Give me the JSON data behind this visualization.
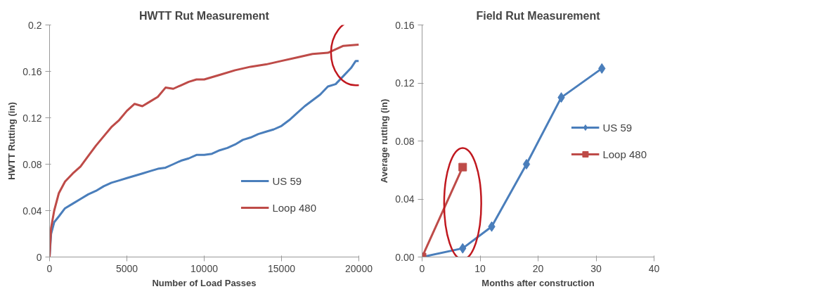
{
  "chart_data": [
    {
      "type": "line",
      "title": "HWTT Rut Measurement",
      "xlabel": "Number of Load Passes",
      "ylabel": "HWTT Rutting (in)",
      "xlim": [
        0,
        20000
      ],
      "ylim": [
        0,
        0.2
      ],
      "xticks": [
        0,
        5000,
        10000,
        15000,
        20000
      ],
      "yticks": [
        0,
        0.04,
        0.08,
        0.12,
        0.16,
        0.2
      ],
      "grid": false,
      "legend": "bottom right",
      "marker": "none",
      "line_style": "solid",
      "series": [
        {
          "name": "US 59",
          "color": "#4a7ebb",
          "x": [
            0,
            100,
            300,
            600,
            1000,
            1500,
            2000,
            2500,
            3000,
            3500,
            4000,
            4500,
            5000,
            5500,
            6000,
            6500,
            7000,
            7500,
            8000,
            8500,
            9000,
            9500,
            10000,
            10500,
            11000,
            11500,
            12000,
            12500,
            13000,
            13500,
            14000,
            14500,
            15000,
            15500,
            16000,
            16500,
            17000,
            17500,
            18000,
            18500,
            19000,
            19500,
            19800,
            20000
          ],
          "values": [
            0,
            0.02,
            0.03,
            0.035,
            0.042,
            0.046,
            0.05,
            0.054,
            0.057,
            0.061,
            0.064,
            0.066,
            0.068,
            0.07,
            0.072,
            0.074,
            0.076,
            0.077,
            0.08,
            0.083,
            0.085,
            0.088,
            0.088,
            0.089,
            0.092,
            0.094,
            0.097,
            0.101,
            0.103,
            0.106,
            0.108,
            0.11,
            0.113,
            0.118,
            0.124,
            0.13,
            0.135,
            0.14,
            0.147,
            0.149,
            0.156,
            0.163,
            0.169,
            0.169
          ]
        },
        {
          "name": "Loop 480",
          "color": "#be4b48",
          "x": [
            0,
            100,
            300,
            600,
            1000,
            1500,
            2000,
            2500,
            3000,
            3500,
            4000,
            4500,
            5000,
            5500,
            6000,
            6500,
            7000,
            7500,
            8000,
            8500,
            9000,
            9500,
            10000,
            11000,
            12000,
            13000,
            14000,
            15000,
            16000,
            17000,
            18000,
            19000,
            20000
          ],
          "values": [
            0,
            0.025,
            0.04,
            0.055,
            0.065,
            0.072,
            0.078,
            0.087,
            0.096,
            0.104,
            0.112,
            0.118,
            0.126,
            0.132,
            0.13,
            0.134,
            0.138,
            0.146,
            0.145,
            0.148,
            0.151,
            0.153,
            0.153,
            0.157,
            0.161,
            0.164,
            0.166,
            0.169,
            0.172,
            0.175,
            0.176,
            0.182,
            0.183
          ]
        }
      ]
    },
    {
      "type": "line",
      "title": "Field Rut Measurement",
      "xlabel": "Months after construction",
      "ylabel": "Average rutting (in)",
      "xlim": [
        0,
        40
      ],
      "ylim": [
        0,
        0.16
      ],
      "xticks": [
        0,
        10,
        20,
        30,
        40
      ],
      "yticks": [
        {
          "value": 0,
          "label": "0.00"
        },
        {
          "value": 0.04,
          "label": "0.04"
        },
        {
          "value": 0.08,
          "label": "0.08"
        },
        {
          "value": 0.12,
          "label": "0.12"
        },
        {
          "value": 0.16,
          "label": "0.16"
        }
      ],
      "grid": false,
      "legend": "right",
      "line_style": "solid",
      "series": [
        {
          "name": "US 59",
          "color": "#4a7ebb",
          "marker": "diamond",
          "x": [
            0,
            7,
            12,
            18,
            24,
            31
          ],
          "values": [
            0,
            0.006,
            0.021,
            0.064,
            0.11,
            0.13
          ]
        },
        {
          "name": "Loop 480",
          "color": "#be4b48",
          "marker": "square",
          "x": [
            0,
            7
          ],
          "values": [
            0,
            0.062
          ]
        }
      ]
    }
  ]
}
